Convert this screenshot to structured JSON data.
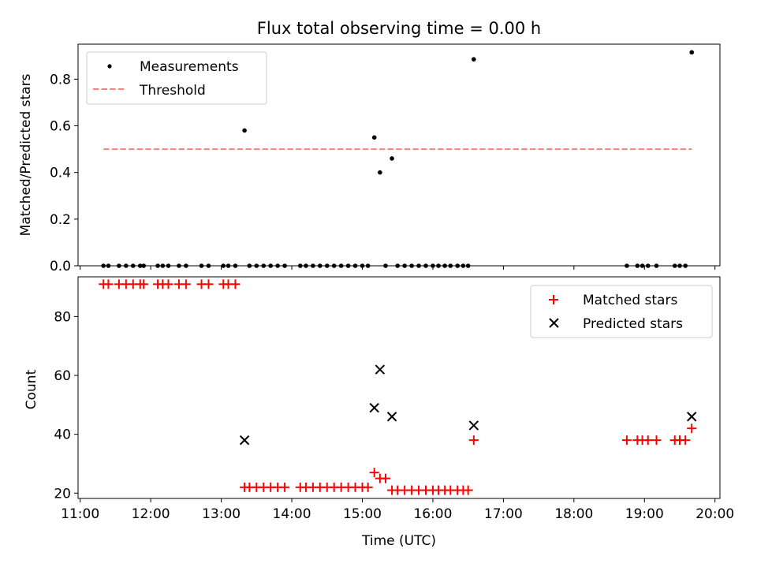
{
  "figure": {
    "title": "Flux total observing time = 0.00 h",
    "background": "#ffffff"
  },
  "chart_data": [
    {
      "type": "scatter",
      "ylabel": "Matched/Predicted stars",
      "xlabel": "",
      "xlim": [
        10.97,
        20.07
      ],
      "ylim": [
        0,
        0.95
      ],
      "y_ticks": [
        0.0,
        0.2,
        0.4,
        0.6,
        0.8
      ],
      "y_tick_labels": [
        "0.0",
        "0.2",
        "0.4",
        "0.6",
        "0.8"
      ],
      "legend": {
        "position": "top-left",
        "entries": [
          {
            "label": "Measurements",
            "marker": "dot",
            "color": "#000000"
          },
          {
            "label": "Threshold",
            "marker": "dashed-line",
            "color": "#ff7f7f"
          }
        ]
      },
      "threshold": {
        "value": 0.5,
        "x_start": 11.33,
        "x_end": 19.67,
        "color": "#ff7f7f"
      },
      "series": [
        {
          "name": "Measurements",
          "color": "#000000",
          "x": [
            11.33,
            11.4,
            11.55,
            11.65,
            11.75,
            11.85,
            11.9,
            12.1,
            12.17,
            12.25,
            12.4,
            12.5,
            12.72,
            12.82,
            13.03,
            13.1,
            13.2,
            13.33,
            13.4,
            13.5,
            13.6,
            13.7,
            13.8,
            13.9,
            14.12,
            14.2,
            14.3,
            14.4,
            14.5,
            14.6,
            14.7,
            14.8,
            14.9,
            15.0,
            15.08,
            15.17,
            15.25,
            15.33,
            15.42,
            15.5,
            15.6,
            15.7,
            15.8,
            15.9,
            16.0,
            16.08,
            16.17,
            16.25,
            16.35,
            16.43,
            16.5,
            16.58,
            18.75,
            18.9,
            18.97,
            19.05,
            19.17,
            19.43,
            19.5,
            19.58,
            19.67
          ],
          "y": [
            0,
            0,
            0,
            0,
            0,
            0,
            0,
            0,
            0,
            0,
            0,
            0,
            0,
            0,
            0,
            0,
            0,
            0.58,
            0,
            0,
            0,
            0,
            0,
            0,
            0,
            0,
            0,
            0,
            0,
            0,
            0,
            0,
            0,
            0,
            0,
            0.55,
            0.4,
            0,
            0.46,
            0,
            0,
            0,
            0,
            0,
            0,
            0,
            0,
            0,
            0,
            0,
            0,
            0.885,
            0,
            0,
            0,
            0,
            0,
            0,
            0,
            0,
            0.915
          ]
        }
      ]
    },
    {
      "type": "scatter",
      "ylabel": "Count",
      "xlabel": "Time (UTC)",
      "xlim": [
        10.97,
        20.07
      ],
      "ylim": [
        18.2,
        93.5
      ],
      "y_ticks": [
        20,
        40,
        60,
        80
      ],
      "y_tick_labels": [
        "20",
        "40",
        "60",
        "80"
      ],
      "x_ticks": [
        11,
        12,
        13,
        14,
        15,
        16,
        17,
        18,
        19,
        20
      ],
      "x_tick_labels": [
        "11:00",
        "12:00",
        "13:00",
        "14:00",
        "15:00",
        "16:00",
        "17:00",
        "18:00",
        "19:00",
        "20:00"
      ],
      "legend": {
        "position": "top-right",
        "entries": [
          {
            "label": "Matched stars",
            "marker": "plus",
            "color": "#ff0000"
          },
          {
            "label": "Predicted stars",
            "marker": "x",
            "color": "#000000"
          }
        ]
      },
      "series": [
        {
          "name": "Matched stars",
          "marker": "plus",
          "color": "#ff0000",
          "x": [
            11.33,
            11.4,
            11.55,
            11.65,
            11.75,
            11.85,
            11.9,
            12.1,
            12.17,
            12.25,
            12.4,
            12.5,
            12.72,
            12.82,
            13.03,
            13.1,
            13.2,
            13.33,
            13.4,
            13.5,
            13.6,
            13.7,
            13.8,
            13.9,
            14.12,
            14.2,
            14.3,
            14.4,
            14.5,
            14.6,
            14.7,
            14.8,
            14.9,
            15.0,
            15.08,
            15.17,
            15.25,
            15.33,
            15.42,
            15.5,
            15.6,
            15.7,
            15.8,
            15.9,
            16.0,
            16.08,
            16.17,
            16.25,
            16.35,
            16.43,
            16.5,
            16.58,
            18.75,
            18.9,
            18.97,
            19.05,
            19.17,
            19.43,
            19.5,
            19.58,
            19.67
          ],
          "y": [
            91,
            91,
            91,
            91,
            91,
            91,
            91,
            91,
            91,
            91,
            91,
            91,
            91,
            91,
            91,
            91,
            91,
            22,
            22,
            22,
            22,
            22,
            22,
            22,
            22,
            22,
            22,
            22,
            22,
            22,
            22,
            22,
            22,
            22,
            22,
            27,
            25,
            25,
            21,
            21,
            21,
            21,
            21,
            21,
            21,
            21,
            21,
            21,
            21,
            21,
            21,
            38,
            38,
            38,
            38,
            38,
            38,
            38,
            38,
            38,
            42
          ]
        },
        {
          "name": "Predicted stars",
          "marker": "x",
          "color": "#000000",
          "x": [
            13.33,
            15.17,
            15.25,
            15.42,
            16.58,
            19.67
          ],
          "y": [
            38,
            49,
            62,
            46,
            43,
            46
          ]
        }
      ]
    }
  ]
}
